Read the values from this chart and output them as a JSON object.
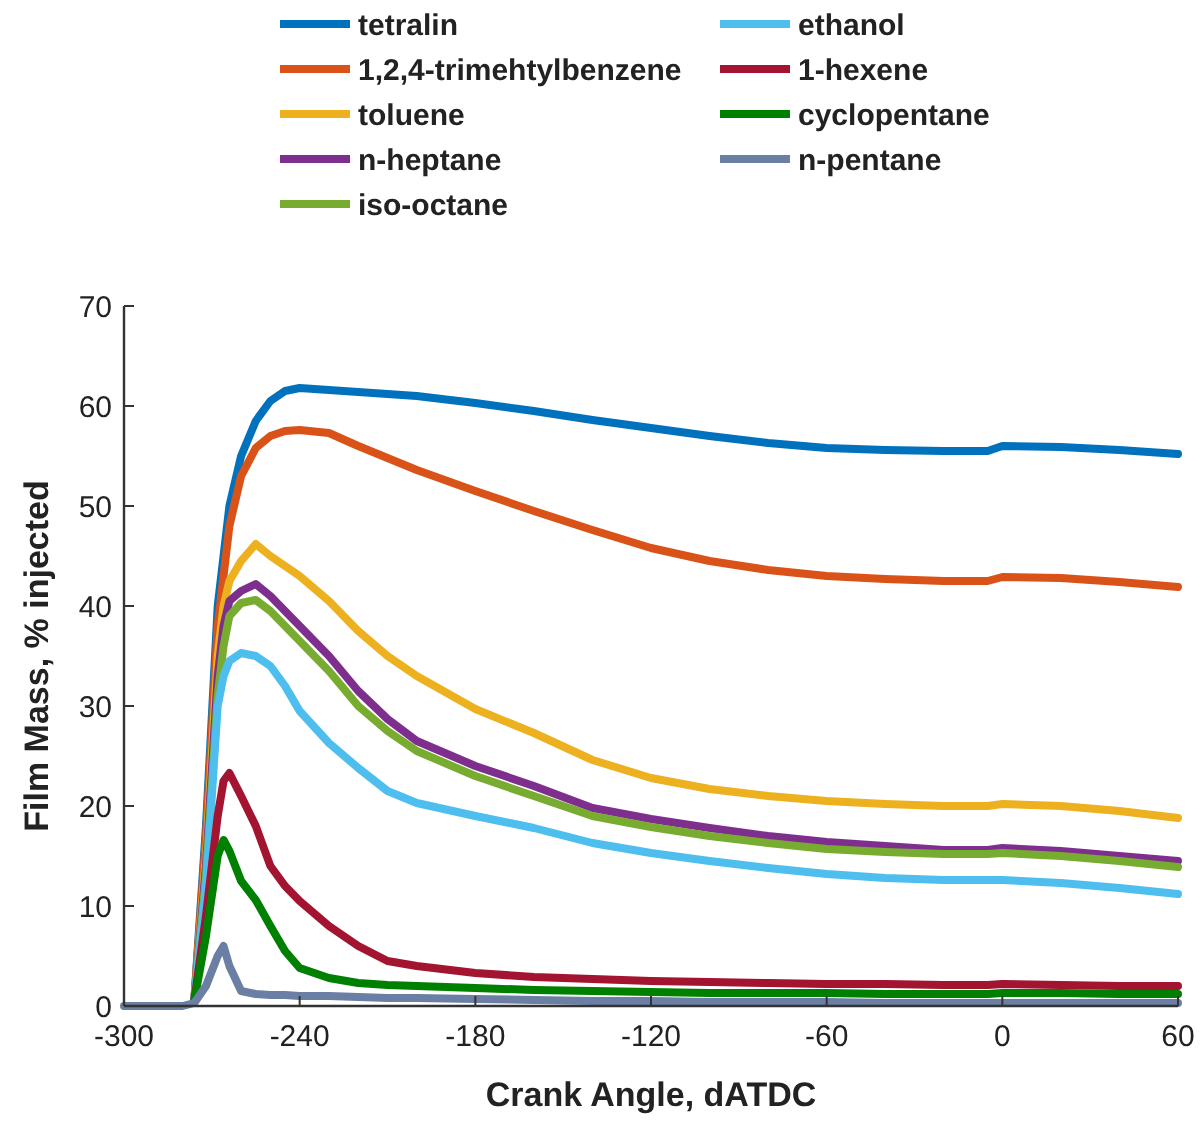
{
  "chart_data": {
    "type": "line",
    "xlabel": "Crank Angle, dATDC",
    "ylabel": "Film Mass, % injected",
    "x": [
      -300,
      -280,
      -276,
      -272,
      -268,
      -266,
      -264,
      -260,
      -255,
      -250,
      -245,
      -240,
      -230,
      -220,
      -210,
      -200,
      -180,
      -160,
      -140,
      -120,
      -100,
      -80,
      -60,
      -40,
      -20,
      -5,
      0,
      20,
      40,
      60
    ],
    "series": [
      {
        "name": "tetralin",
        "color": "#0072bd",
        "values": [
          null,
          null,
          0.5,
          18,
          40,
          45,
          50,
          55,
          58.5,
          60.5,
          61.5,
          61.8,
          61.6,
          61.4,
          61.2,
          61,
          60.3,
          59.5,
          58.6,
          57.8,
          57,
          56.3,
          55.8,
          55.6,
          55.5,
          55.5,
          56,
          55.9,
          55.6,
          55.2
        ]
      },
      {
        "name": "1,2,4-trimehtylbenzene",
        "color": "#d95319",
        "values": [
          null,
          null,
          0.5,
          17,
          38,
          43,
          48,
          53,
          55.8,
          57,
          57.5,
          57.6,
          57.3,
          56,
          54.8,
          53.6,
          51.5,
          49.5,
          47.6,
          45.8,
          44.5,
          43.6,
          43,
          42.7,
          42.5,
          42.5,
          42.9,
          42.8,
          42.4,
          41.9
        ]
      },
      {
        "name": "toluene",
        "color": "#edb120",
        "values": [
          null,
          null,
          0.5,
          15,
          35,
          40,
          42.5,
          44.5,
          46.2,
          45,
          44,
          43,
          40.5,
          37.5,
          35,
          33,
          29.7,
          27.3,
          24.6,
          22.8,
          21.7,
          21,
          20.5,
          20.2,
          20,
          20,
          20.2,
          20,
          19.5,
          18.8
        ]
      },
      {
        "name": "n-heptane",
        "color": "#7e2f8e",
        "values": [
          null,
          null,
          0.5,
          14,
          33,
          38,
          40.5,
          41.5,
          42.2,
          41,
          39.5,
          38,
          35,
          31.5,
          28.7,
          26.5,
          24,
          22,
          19.8,
          18.7,
          17.8,
          17,
          16.4,
          16,
          15.6,
          15.6,
          15.8,
          15.5,
          15,
          14.5
        ]
      },
      {
        "name": "iso-octane",
        "color": "#77ac30",
        "values": [
          null,
          null,
          0.5,
          13,
          31,
          36,
          39,
          40.3,
          40.6,
          39.5,
          38,
          36.5,
          33.5,
          30,
          27.5,
          25.5,
          23,
          21,
          19,
          17.9,
          17,
          16.3,
          15.7,
          15.4,
          15.2,
          15.2,
          15.3,
          15,
          14.5,
          13.9
        ]
      },
      {
        "name": "ethanol",
        "color": "#4dbeee",
        "values": [
          null,
          null,
          0.5,
          12,
          30,
          33,
          34.5,
          35.3,
          35,
          34,
          32,
          29.5,
          26.3,
          23.8,
          21.5,
          20.3,
          19,
          17.8,
          16.3,
          15.3,
          14.5,
          13.8,
          13.2,
          12.8,
          12.6,
          12.6,
          12.6,
          12.3,
          11.8,
          11.2
        ]
      },
      {
        "name": "1-hexene",
        "color": "#a2142f",
        "values": [
          null,
          null,
          0.5,
          9,
          19,
          22.5,
          23.3,
          21,
          18,
          14,
          12,
          10.5,
          8,
          6,
          4.5,
          4,
          3.3,
          2.9,
          2.7,
          2.5,
          2.4,
          2.3,
          2.2,
          2.2,
          2.1,
          2.1,
          2.2,
          2.1,
          2,
          2
        ]
      },
      {
        "name": "cyclopentane",
        "color": "#008000",
        "values": [
          null,
          null,
          0.5,
          7,
          15,
          16.6,
          15.5,
          12.5,
          10.6,
          8,
          5.5,
          3.8,
          2.8,
          2.3,
          2.1,
          2,
          1.8,
          1.6,
          1.5,
          1.4,
          1.3,
          1.3,
          1.3,
          1.2,
          1.2,
          1.2,
          1.3,
          1.3,
          1.2,
          1.2
        ]
      },
      {
        "name": "n-pentane",
        "color": "#6a7fa3",
        "values": [
          0,
          0,
          0.3,
          2,
          5,
          6,
          4,
          1.5,
          1.2,
          1.1,
          1.1,
          1,
          1,
          0.9,
          0.8,
          0.8,
          0.7,
          0.6,
          0.5,
          0.5,
          0.4,
          0.4,
          0.4,
          0.3,
          0.3,
          0.3,
          0.3,
          0.3,
          0.3,
          0.3
        ]
      }
    ],
    "xlim": [
      -300,
      60
    ],
    "xticks": [
      -300,
      -240,
      -180,
      -120,
      -60,
      0,
      60
    ],
    "ylim": [
      0,
      70
    ],
    "yticks": [
      0,
      10,
      20,
      30,
      40,
      50,
      60,
      70
    ],
    "legend": "top",
    "grid": false,
    "marker": "none",
    "line_style": "solid"
  }
}
